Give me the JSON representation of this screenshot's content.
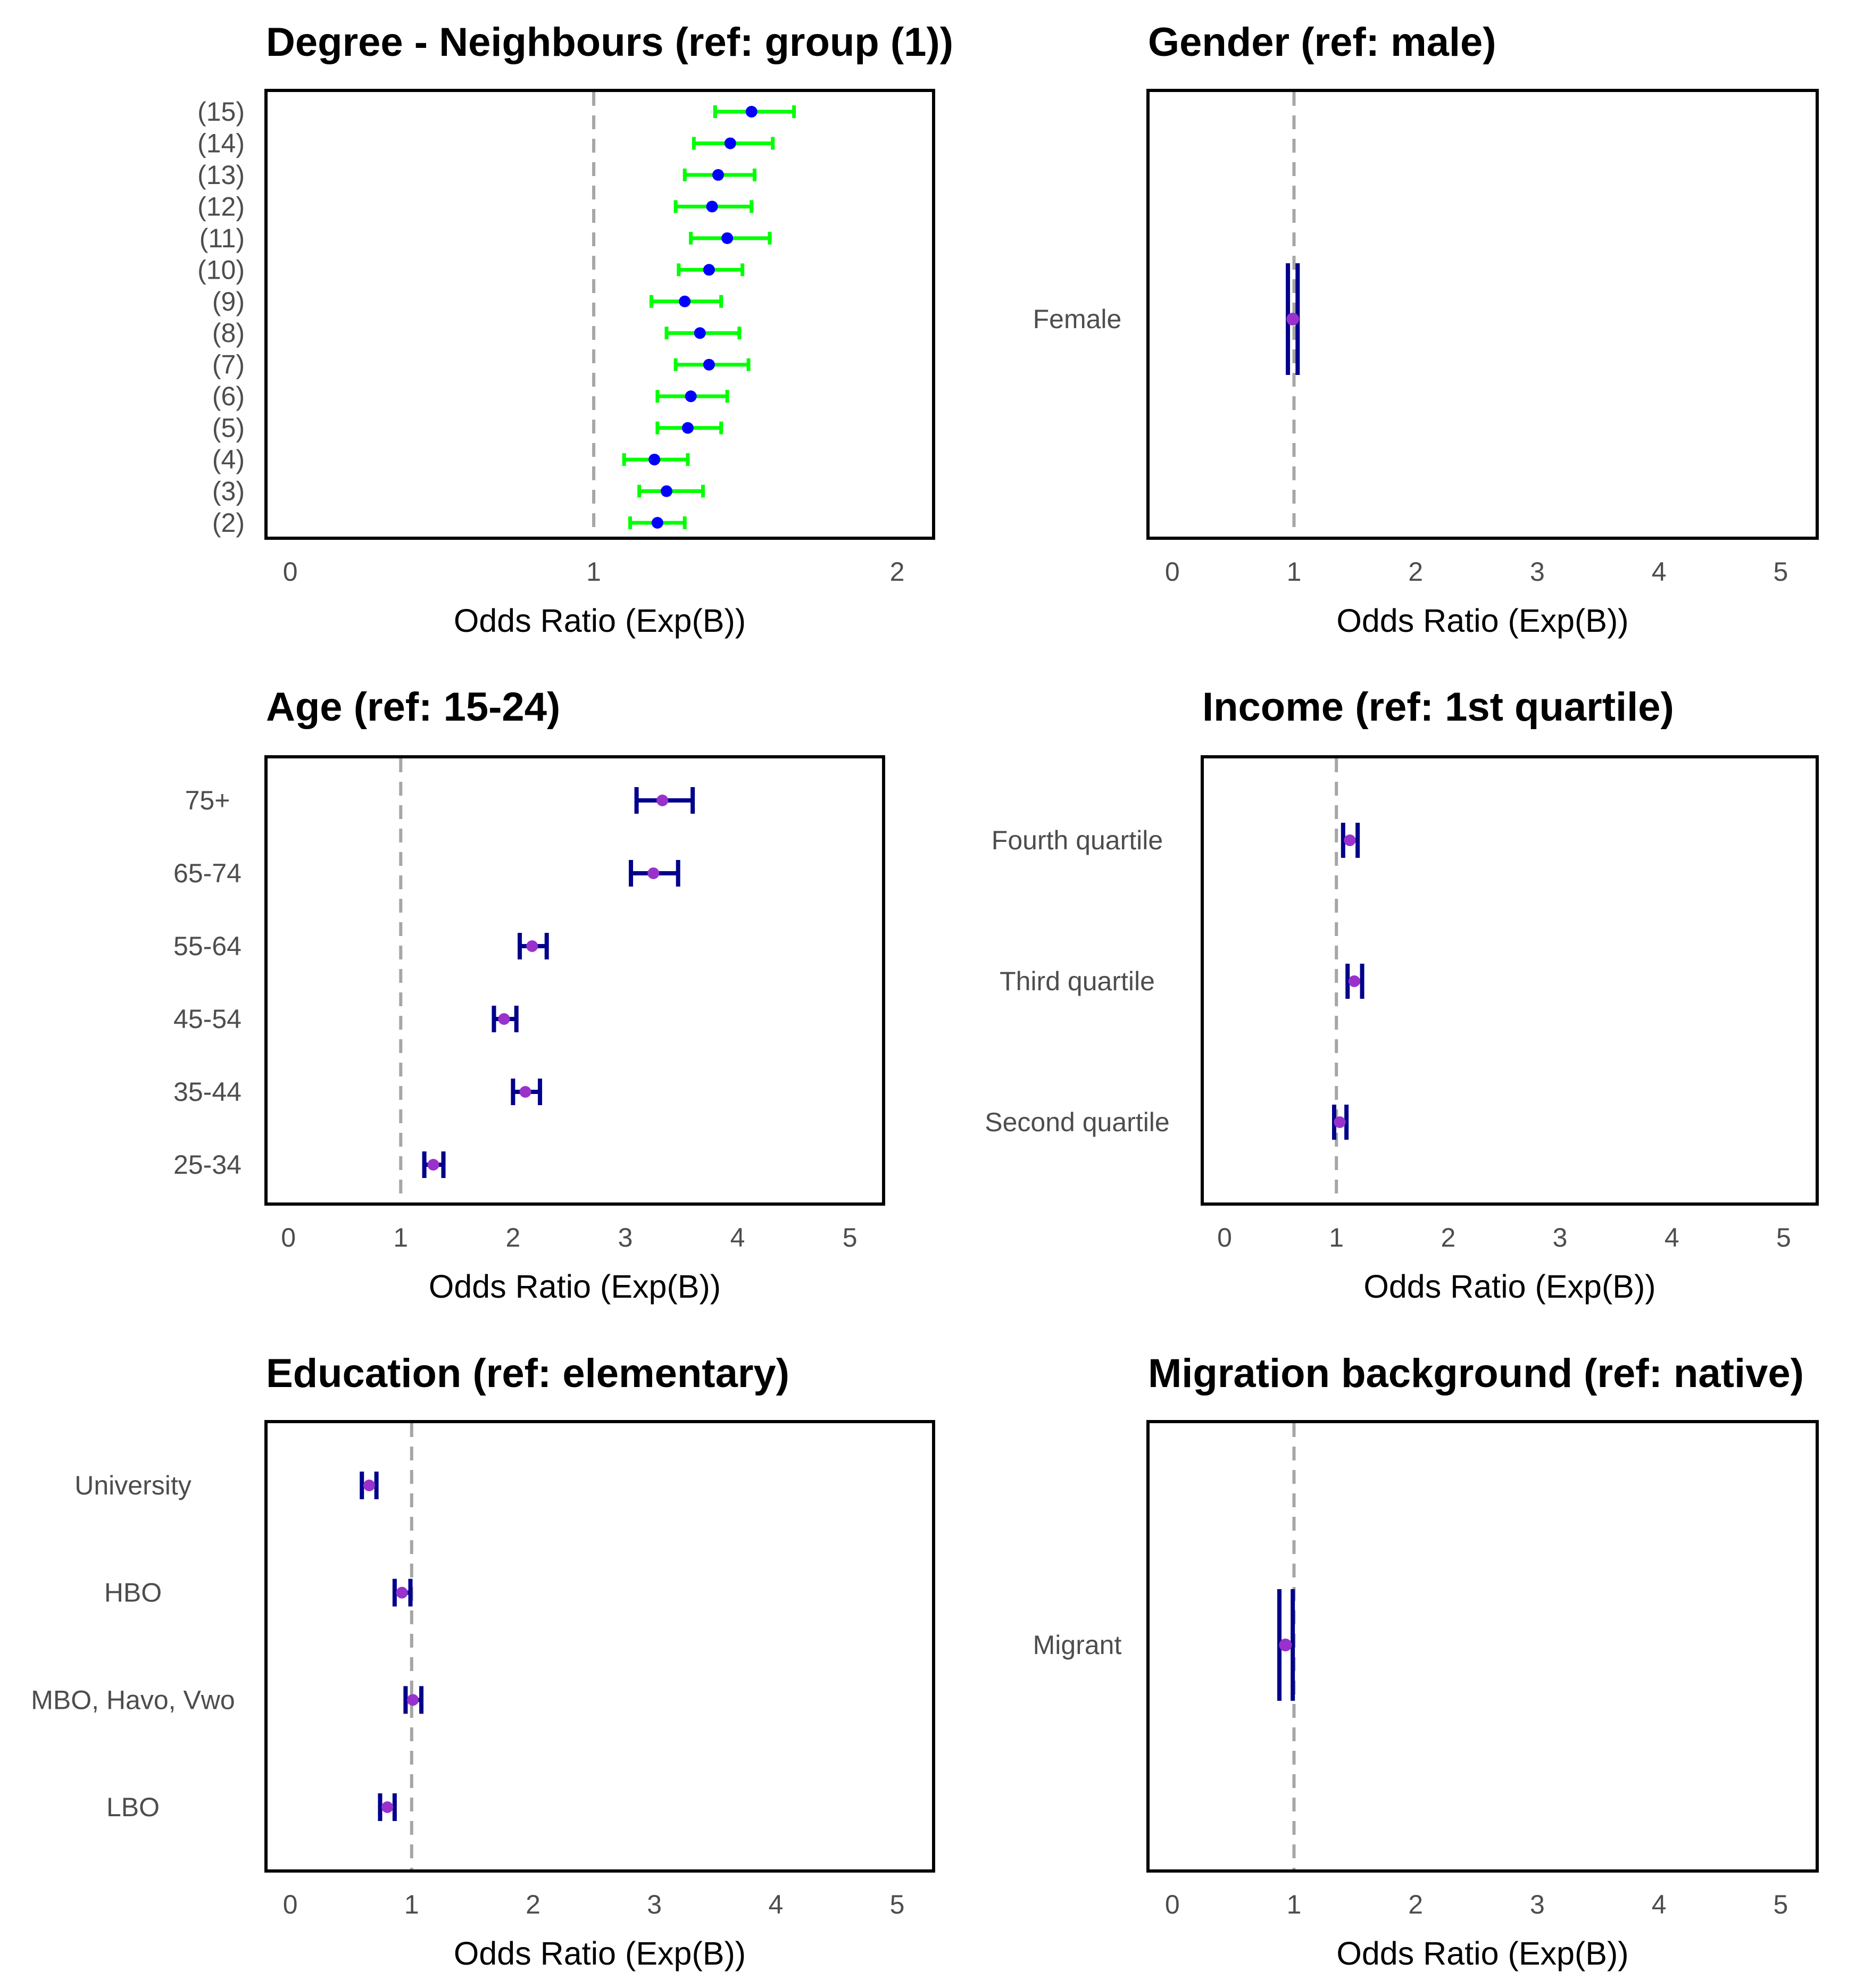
{
  "chart_data": [
    {
      "type": "forest",
      "title": "Degree - Neighbours (ref: group (1))",
      "xlabel": "Odds Ratio (Exp(B))",
      "xlim": [
        -0.08,
        2.12
      ],
      "xticks": [
        "0",
        "1",
        "2"
      ],
      "reference_line": 1,
      "colors": {
        "point": "#0000ff",
        "ci": "#00ff00"
      },
      "categories": [
        "(15)",
        "(14)",
        "(13)",
        "(12)",
        "(11)",
        "(10)",
        "(9)",
        "(8)",
        "(7)",
        "(6)",
        "(5)",
        "(4)",
        "(3)",
        "(2)"
      ],
      "estimates": [
        1.52,
        1.45,
        1.41,
        1.39,
        1.44,
        1.38,
        1.3,
        1.35,
        1.38,
        1.32,
        1.31,
        1.2,
        1.24,
        1.21
      ],
      "ci_low": [
        1.4,
        1.33,
        1.3,
        1.27,
        1.32,
        1.28,
        1.19,
        1.24,
        1.27,
        1.21,
        1.21,
        1.1,
        1.15,
        1.12
      ],
      "ci_high": [
        1.66,
        1.59,
        1.53,
        1.52,
        1.58,
        1.49,
        1.42,
        1.48,
        1.51,
        1.44,
        1.42,
        1.31,
        1.36,
        1.3
      ]
    },
    {
      "type": "forest",
      "title": "Gender (ref: male)",
      "xlabel": "Odds Ratio (Exp(B))",
      "xlim": [
        -0.2,
        5.3
      ],
      "xticks": [
        "0",
        "1",
        "2",
        "3",
        "4",
        "5"
      ],
      "reference_line": 1,
      "colors": {
        "point": "#9932cc",
        "ci": "#00008b"
      },
      "categories": [
        "Female"
      ],
      "estimates": [
        0.99
      ],
      "ci_low": [
        0.95
      ],
      "ci_high": [
        1.03
      ]
    },
    {
      "type": "forest",
      "title": "Age (ref: 15-24)",
      "xlabel": "Odds Ratio (Exp(B))",
      "xlim": [
        -0.2,
        5.3
      ],
      "xticks": [
        "0",
        "1",
        "2",
        "3",
        "4",
        "5"
      ],
      "reference_line": 1,
      "colors": {
        "point": "#9932cc",
        "ci": "#00008b"
      },
      "categories": [
        "75+",
        "65-74",
        "55-64",
        "45-54",
        "35-44",
        "25-34"
      ],
      "estimates": [
        3.33,
        3.25,
        2.17,
        1.92,
        2.11,
        1.29
      ],
      "ci_low": [
        3.1,
        3.05,
        2.06,
        1.83,
        2.0,
        1.21
      ],
      "ci_high": [
        3.6,
        3.47,
        2.3,
        2.03,
        2.24,
        1.38
      ]
    },
    {
      "type": "forest",
      "title": "Income (ref: 1st quartile)",
      "xlabel": "Odds Ratio (Exp(B))",
      "xlim": [
        -0.2,
        5.3
      ],
      "xticks": [
        "0",
        "1",
        "2",
        "3",
        "4",
        "5"
      ],
      "reference_line": 1,
      "colors": {
        "point": "#9932cc",
        "ci": "#00008b"
      },
      "categories": [
        "Fourth quartile",
        "Third quartile",
        "Second quartile"
      ],
      "estimates": [
        1.12,
        1.16,
        1.03
      ],
      "ci_low": [
        1.06,
        1.1,
        0.98
      ],
      "ci_high": [
        1.19,
        1.23,
        1.09
      ]
    },
    {
      "type": "forest",
      "title": "Education (ref: elementary)",
      "xlabel": "Odds Ratio (Exp(B))",
      "xlim": [
        -0.2,
        5.3
      ],
      "xticks": [
        "0",
        "1",
        "2",
        "3",
        "4",
        "5"
      ],
      "reference_line": 1,
      "colors": {
        "point": "#9932cc",
        "ci": "#00008b"
      },
      "categories": [
        "University",
        "HBO",
        "MBO, Havo, Vwo",
        "LBO"
      ],
      "estimates": [
        0.65,
        0.92,
        1.01,
        0.8
      ],
      "ci_low": [
        0.59,
        0.86,
        0.95,
        0.74
      ],
      "ci_high": [
        0.71,
        0.99,
        1.08,
        0.86
      ]
    },
    {
      "type": "forest",
      "title": "Migration background (ref: native)",
      "xlabel": "Odds Ratio (Exp(B))",
      "xlim": [
        -0.2,
        5.3
      ],
      "xticks": [
        "0",
        "1",
        "2",
        "3",
        "4",
        "5"
      ],
      "reference_line": 1,
      "colors": {
        "point": "#9932cc",
        "ci": "#00008b"
      },
      "categories": [
        "Migrant"
      ],
      "estimates": [
        0.93
      ],
      "ci_low": [
        0.88
      ],
      "ci_high": [
        0.99
      ]
    }
  ]
}
